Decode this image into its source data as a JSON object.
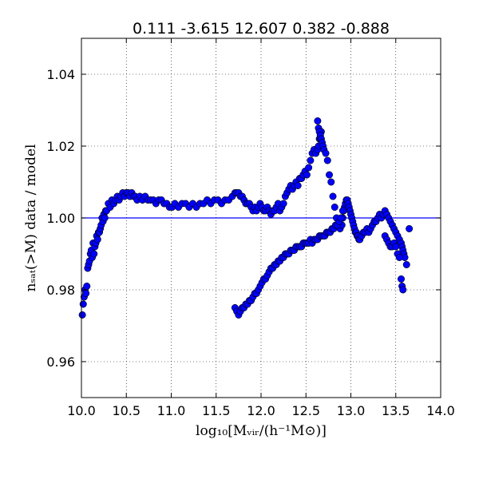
{
  "chart_data": {
    "type": "scatter",
    "title": "0.111 -3.615 12.607 0.382 -0.888",
    "xlabel": "log₁₀[Mᵥᵢᵣ/(h⁻¹M⊙)]",
    "ylabel": "nₛₐₜ(>M) data / model",
    "xlim": [
      10.0,
      14.0
    ],
    "ylim": [
      0.95,
      1.05
    ],
    "xticks": [
      "10.0",
      "10.5",
      "11.0",
      "11.5",
      "12.0",
      "12.5",
      "13.0",
      "13.5",
      "14.0"
    ],
    "yticks": [
      "0.96",
      "0.98",
      "1.00",
      "1.02",
      "1.04"
    ],
    "grid": true,
    "reference_line": {
      "y": 1.0,
      "color": "#0000ff"
    },
    "marker_color": "#0000ff",
    "series": [
      {
        "x": [
          10.01,
          10.02,
          10.03,
          10.04,
          10.05,
          10.06,
          10.07,
          10.08,
          10.09,
          10.1,
          10.11,
          10.12,
          10.13,
          10.14,
          10.15,
          10.16,
          10.17,
          10.18,
          10.19,
          10.2,
          10.21,
          10.22,
          10.23,
          10.24,
          10.25,
          10.26,
          10.27,
          10.28,
          10.3,
          10.32,
          10.34,
          10.36,
          10.38,
          10.4,
          10.42,
          10.44,
          10.46,
          10.48,
          10.5,
          10.52,
          10.54,
          10.56,
          10.58,
          10.6,
          10.62,
          10.65,
          10.68,
          10.71,
          10.74,
          10.77,
          10.8,
          10.83,
          10.86,
          10.89,
          10.92,
          10.95,
          10.98,
          11.01,
          11.04,
          11.08,
          11.12,
          11.16,
          11.2,
          11.24,
          11.28,
          11.32,
          11.36,
          11.4,
          11.44,
          11.48,
          11.52,
          11.56,
          11.6,
          11.64,
          11.68,
          11.71,
          11.73,
          11.75,
          11.77,
          11.79,
          11.81,
          11.83,
          11.85,
          11.87,
          11.89,
          11.91,
          11.93,
          11.95,
          11.97,
          11.99,
          12.01,
          12.03,
          12.05,
          12.07,
          12.09,
          12.11,
          12.13,
          12.15,
          12.17,
          12.19,
          12.21,
          12.23,
          12.25,
          12.27,
          12.29,
          12.31,
          12.33,
          12.35,
          12.37,
          12.39,
          12.41,
          12.43,
          12.45,
          12.47,
          12.49,
          12.51,
          12.53,
          12.55,
          12.57,
          12.59,
          12.61,
          12.63,
          12.64,
          12.65,
          12.66,
          12.67
        ],
        "y": [
          0.973,
          0.976,
          0.978,
          0.98,
          0.979,
          0.981,
          0.986,
          0.987,
          0.988,
          0.99,
          0.991,
          0.989,
          0.993,
          0.99,
          0.992,
          0.993,
          0.995,
          0.994,
          0.996,
          0.996,
          0.997,
          0.998,
          1.0,
          0.999,
          1.001,
          1.0,
          1.002,
          1.002,
          1.004,
          1.003,
          1.005,
          1.004,
          1.005,
          1.006,
          1.005,
          1.006,
          1.007,
          1.006,
          1.007,
          1.007,
          1.006,
          1.007,
          1.006,
          1.006,
          1.005,
          1.006,
          1.005,
          1.006,
          1.005,
          1.005,
          1.005,
          1.004,
          1.005,
          1.005,
          1.004,
          1.004,
          1.003,
          1.003,
          1.004,
          1.003,
          1.004,
          1.004,
          1.003,
          1.004,
          1.003,
          1.004,
          1.004,
          1.005,
          1.004,
          1.005,
          1.005,
          1.004,
          1.005,
          1.005,
          1.006,
          1.007,
          1.007,
          1.007,
          1.006,
          1.006,
          1.005,
          1.004,
          1.004,
          1.004,
          1.003,
          1.002,
          1.003,
          1.002,
          1.003,
          1.004,
          1.003,
          1.002,
          1.002,
          1.003,
          1.002,
          1.001,
          1.002,
          1.002,
          1.003,
          1.004,
          1.002,
          1.003,
          1.004,
          1.006,
          1.007,
          1.008,
          1.009,
          1.008,
          1.009,
          1.01,
          1.009,
          1.011,
          1.011,
          1.012,
          1.013,
          1.012,
          1.014,
          1.016,
          1.018,
          1.019,
          1.018,
          1.019,
          1.02,
          1.022,
          1.022,
          1.024
        ]
      },
      {
        "x": [
          12.63,
          12.64,
          12.65,
          12.66,
          12.67,
          12.68,
          12.69,
          12.7,
          12.72,
          12.74,
          12.76,
          12.78,
          12.8,
          12.82,
          12.84,
          12.86,
          12.88,
          12.9,
          12.91,
          12.92,
          12.93,
          12.94,
          12.95,
          12.96,
          12.97,
          12.98,
          12.99,
          13.0,
          13.01,
          13.02,
          13.03,
          13.04,
          13.05,
          13.06,
          13.07,
          13.08,
          13.09,
          13.1,
          13.12,
          13.14,
          13.16,
          13.18,
          13.2,
          13.22,
          13.24,
          13.26,
          13.28,
          13.3,
          13.32,
          13.34,
          13.36,
          13.38,
          13.4,
          13.42,
          13.44,
          13.46,
          13.48,
          13.5,
          13.52,
          13.54,
          13.56,
          13.57,
          13.58,
          13.59,
          13.6,
          13.62,
          13.65
        ],
        "y": [
          1.027,
          1.025,
          1.024,
          1.023,
          1.022,
          1.021,
          1.02,
          1.019,
          1.018,
          1.016,
          1.012,
          1.01,
          1.006,
          1.003,
          1.0,
          0.998,
          0.997,
          0.998,
          1.0,
          1.002,
          1.003,
          1.004,
          1.005,
          1.005,
          1.004,
          1.003,
          1.002,
          1.001,
          1.0,
          0.999,
          0.998,
          0.997,
          0.996,
          0.996,
          0.995,
          0.995,
          0.994,
          0.994,
          0.995,
          0.996,
          0.996,
          0.997,
          0.996,
          0.997,
          0.998,
          0.999,
          0.999,
          1.0,
          1.001,
          1.0,
          1.001,
          1.002,
          1.001,
          1.0,
          0.999,
          0.998,
          0.997,
          0.996,
          0.995,
          0.994,
          0.993,
          0.992,
          0.991,
          0.99,
          0.989,
          0.987,
          0.997
        ]
      },
      {
        "x": [
          11.71,
          11.73,
          11.75,
          11.77,
          11.79,
          11.81,
          11.83,
          11.85,
          11.87,
          11.89,
          11.91,
          11.93,
          11.95,
          11.97,
          11.99,
          12.01,
          12.03,
          12.05,
          12.07,
          12.09,
          12.11,
          12.13,
          12.15,
          12.17,
          12.19,
          12.21,
          12.23,
          12.25,
          12.27,
          12.29,
          12.31,
          12.33,
          12.35,
          12.37,
          12.39,
          12.41,
          12.43,
          12.45,
          12.47,
          12.49,
          12.51,
          12.53,
          12.55,
          12.57,
          12.59,
          12.61,
          12.63,
          12.65,
          12.67,
          12.69,
          12.71,
          12.73,
          12.75,
          12.77,
          12.79,
          12.81,
          12.83,
          12.85,
          12.87,
          12.89,
          12.91,
          13.38,
          13.4,
          13.42,
          13.44,
          13.46,
          13.48,
          13.5,
          13.52,
          13.54,
          13.56,
          13.57,
          13.58
        ],
        "y": [
          0.975,
          0.974,
          0.973,
          0.974,
          0.975,
          0.975,
          0.976,
          0.976,
          0.977,
          0.977,
          0.978,
          0.979,
          0.979,
          0.98,
          0.981,
          0.982,
          0.983,
          0.983,
          0.984,
          0.985,
          0.986,
          0.986,
          0.987,
          0.987,
          0.988,
          0.988,
          0.989,
          0.989,
          0.99,
          0.99,
          0.99,
          0.991,
          0.991,
          0.991,
          0.992,
          0.992,
          0.992,
          0.992,
          0.993,
          0.993,
          0.993,
          0.993,
          0.994,
          0.993,
          0.994,
          0.994,
          0.994,
          0.995,
          0.995,
          0.995,
          0.995,
          0.996,
          0.996,
          0.996,
          0.997,
          0.997,
          0.998,
          0.998,
          0.999,
          1.0,
          1.002,
          0.995,
          0.994,
          0.993,
          0.992,
          0.992,
          0.993,
          0.992,
          0.99,
          0.989,
          0.983,
          0.981,
          0.98
        ]
      }
    ]
  }
}
